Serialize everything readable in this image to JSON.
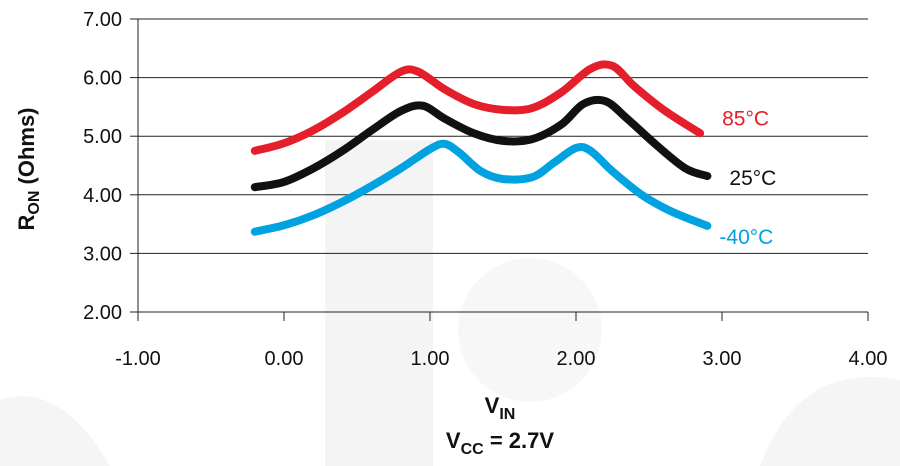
{
  "chart_data": {
    "type": "line",
    "xlabel": {
      "main": "V",
      "sub": "IN"
    },
    "ylabel": {
      "main": "R",
      "sub": "ON",
      "rest": " (Ohms)"
    },
    "caption": {
      "main": "V",
      "sub": "CC",
      "rest": " = 2.7V"
    },
    "xlim": [
      -1.0,
      4.0
    ],
    "ylim": [
      2.0,
      7.0
    ],
    "x_ticks": [
      "-1.00",
      "0.00",
      "1.00",
      "2.00",
      "3.00",
      "4.00"
    ],
    "y_ticks": [
      "2.00",
      "3.00",
      "4.00",
      "5.00",
      "6.00",
      "7.00"
    ],
    "grid": "horizontal",
    "series": [
      {
        "name": "85°C",
        "color": "#e41e2b",
        "points": [
          [
            -0.2,
            4.75
          ],
          [
            0.0,
            4.88
          ],
          [
            0.2,
            5.1
          ],
          [
            0.4,
            5.4
          ],
          [
            0.6,
            5.75
          ],
          [
            0.8,
            6.1
          ],
          [
            0.92,
            6.1
          ],
          [
            1.1,
            5.8
          ],
          [
            1.3,
            5.55
          ],
          [
            1.5,
            5.45
          ],
          [
            1.7,
            5.48
          ],
          [
            1.9,
            5.75
          ],
          [
            2.1,
            6.15
          ],
          [
            2.25,
            6.2
          ],
          [
            2.4,
            5.85
          ],
          [
            2.6,
            5.45
          ],
          [
            2.85,
            5.05
          ]
        ]
      },
      {
        "name": "25°C",
        "color": "#111111",
        "points": [
          [
            -0.2,
            4.13
          ],
          [
            0.0,
            4.22
          ],
          [
            0.2,
            4.45
          ],
          [
            0.4,
            4.75
          ],
          [
            0.6,
            5.1
          ],
          [
            0.8,
            5.43
          ],
          [
            0.95,
            5.52
          ],
          [
            1.1,
            5.3
          ],
          [
            1.3,
            5.05
          ],
          [
            1.5,
            4.92
          ],
          [
            1.7,
            4.95
          ],
          [
            1.9,
            5.2
          ],
          [
            2.05,
            5.55
          ],
          [
            2.2,
            5.6
          ],
          [
            2.35,
            5.3
          ],
          [
            2.55,
            4.85
          ],
          [
            2.75,
            4.45
          ],
          [
            2.9,
            4.32
          ]
        ]
      },
      {
        "name": "-40°C",
        "color": "#00a3e0",
        "points": [
          [
            -0.2,
            3.37
          ],
          [
            0.0,
            3.48
          ],
          [
            0.2,
            3.65
          ],
          [
            0.4,
            3.88
          ],
          [
            0.6,
            4.15
          ],
          [
            0.8,
            4.45
          ],
          [
            1.0,
            4.78
          ],
          [
            1.1,
            4.87
          ],
          [
            1.2,
            4.72
          ],
          [
            1.35,
            4.4
          ],
          [
            1.5,
            4.27
          ],
          [
            1.7,
            4.3
          ],
          [
            1.85,
            4.55
          ],
          [
            2.0,
            4.8
          ],
          [
            2.1,
            4.75
          ],
          [
            2.25,
            4.4
          ],
          [
            2.45,
            4.0
          ],
          [
            2.65,
            3.72
          ],
          [
            2.9,
            3.47
          ]
        ]
      }
    ]
  }
}
